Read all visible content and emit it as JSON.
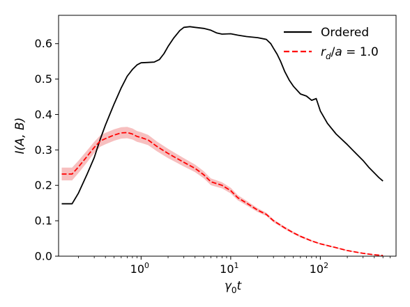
{
  "chart_data": {
    "type": "line",
    "x_scale": "log",
    "xlim": [
      0.12,
      700
    ],
    "ylim": [
      0,
      0.68
    ],
    "grid": false,
    "legend_location": "top-right",
    "xlabel": "γ0t",
    "ylabel": "I(A, B)",
    "x_ticks": [
      1,
      10,
      100
    ],
    "x_tick_labels": [
      "10^0",
      "10^1",
      "10^2"
    ],
    "y_ticks": [
      0.0,
      0.1,
      0.2,
      0.3,
      0.4,
      0.5,
      0.6
    ],
    "y_tick_labels": [
      "0.0",
      "0.1",
      "0.2",
      "0.3",
      "0.4",
      "0.5",
      "0.6"
    ],
    "series": [
      {
        "name": "Ordered",
        "color": "#000000",
        "line_style": "solid",
        "points": [
          [
            0.13,
            0.148
          ],
          [
            0.17,
            0.148
          ],
          [
            0.2,
            0.178
          ],
          [
            0.25,
            0.232
          ],
          [
            0.3,
            0.278
          ],
          [
            0.35,
            0.33
          ],
          [
            0.4,
            0.37
          ],
          [
            0.45,
            0.402
          ],
          [
            0.5,
            0.43
          ],
          [
            0.6,
            0.475
          ],
          [
            0.7,
            0.508
          ],
          [
            0.8,
            0.527
          ],
          [
            0.9,
            0.54
          ],
          [
            1.0,
            0.546
          ],
          [
            1.2,
            0.547
          ],
          [
            1.4,
            0.548
          ],
          [
            1.6,
            0.555
          ],
          [
            1.8,
            0.572
          ],
          [
            2.0,
            0.592
          ],
          [
            2.3,
            0.615
          ],
          [
            2.7,
            0.637
          ],
          [
            3.0,
            0.646
          ],
          [
            3.5,
            0.648
          ],
          [
            4.0,
            0.646
          ],
          [
            5.0,
            0.643
          ],
          [
            6.0,
            0.638
          ],
          [
            7.0,
            0.63
          ],
          [
            8.0,
            0.627
          ],
          [
            10.0,
            0.628
          ],
          [
            12.0,
            0.624
          ],
          [
            15.0,
            0.62
          ],
          [
            20.0,
            0.617
          ],
          [
            25.0,
            0.612
          ],
          [
            28.0,
            0.6
          ],
          [
            30.0,
            0.587
          ],
          [
            33.0,
            0.57
          ],
          [
            36.0,
            0.55
          ],
          [
            40.0,
            0.522
          ],
          [
            45.0,
            0.497
          ],
          [
            50.0,
            0.48
          ],
          [
            60.0,
            0.458
          ],
          [
            70.0,
            0.452
          ],
          [
            80.0,
            0.44
          ],
          [
            90.0,
            0.445
          ],
          [
            100.0,
            0.41
          ],
          [
            120.0,
            0.375
          ],
          [
            150.0,
            0.345
          ],
          [
            200.0,
            0.315
          ],
          [
            250.0,
            0.29
          ],
          [
            300.0,
            0.27
          ],
          [
            350.0,
            0.25
          ],
          [
            400.0,
            0.235
          ],
          [
            450.0,
            0.222
          ],
          [
            500.0,
            0.212
          ]
        ]
      },
      {
        "name": "r_d/a = 1.0",
        "color": "#ff0000",
        "band_color": "#f08080",
        "line_style": "dashed",
        "points": [
          [
            0.13,
            0.232
          ],
          [
            0.17,
            0.232
          ],
          [
            0.2,
            0.252
          ],
          [
            0.25,
            0.282
          ],
          [
            0.3,
            0.307
          ],
          [
            0.35,
            0.325
          ],
          [
            0.4,
            0.332
          ],
          [
            0.5,
            0.342
          ],
          [
            0.6,
            0.348
          ],
          [
            0.7,
            0.349
          ],
          [
            0.8,
            0.345
          ],
          [
            0.9,
            0.338
          ],
          [
            1.0,
            0.335
          ],
          [
            1.2,
            0.328
          ],
          [
            1.5,
            0.31
          ],
          [
            2.0,
            0.29
          ],
          [
            3.0,
            0.265
          ],
          [
            4.0,
            0.248
          ],
          [
            5.0,
            0.23
          ],
          [
            6.0,
            0.21
          ],
          [
            8.0,
            0.2
          ],
          [
            10.0,
            0.185
          ],
          [
            12.0,
            0.165
          ],
          [
            15.0,
            0.15
          ],
          [
            20.0,
            0.13
          ],
          [
            25.0,
            0.118
          ],
          [
            30.0,
            0.1
          ],
          [
            40.0,
            0.08
          ],
          [
            50.0,
            0.066
          ],
          [
            60.0,
            0.056
          ],
          [
            80.0,
            0.043
          ],
          [
            100.0,
            0.035
          ],
          [
            150.0,
            0.024
          ],
          [
            200.0,
            0.016
          ],
          [
            300.0,
            0.008
          ],
          [
            400.0,
            0.004
          ],
          [
            500.0,
            0.002
          ]
        ],
        "band_halfwidth": [
          [
            0.13,
            0.018
          ],
          [
            0.17,
            0.018
          ],
          [
            0.3,
            0.016
          ],
          [
            0.7,
            0.016
          ],
          [
            1.0,
            0.015
          ],
          [
            2.0,
            0.013
          ],
          [
            5.0,
            0.01
          ],
          [
            10.0,
            0.008
          ],
          [
            30.0,
            0.004
          ],
          [
            100.0,
            0.002
          ],
          [
            500.0,
            0.001
          ]
        ]
      }
    ]
  }
}
